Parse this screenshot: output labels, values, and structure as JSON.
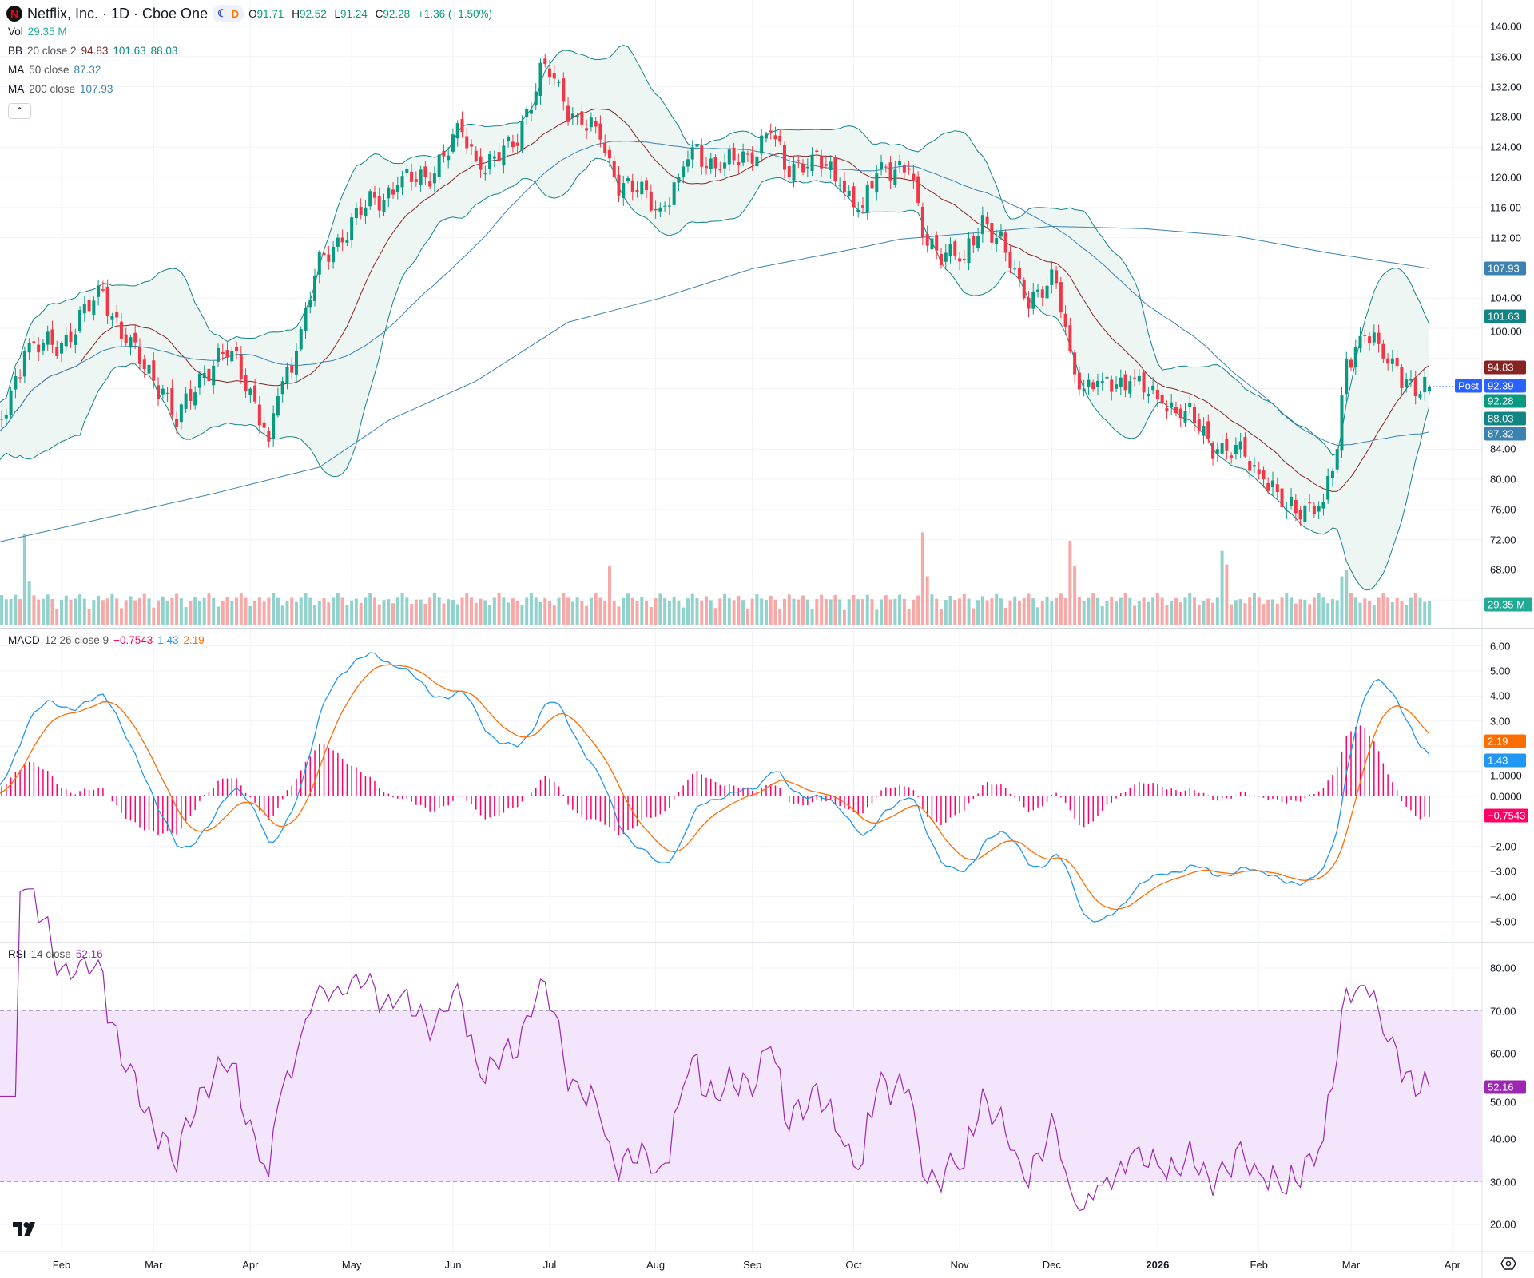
{
  "header": {
    "symbol_name": "Netflix, Inc. · 1D · Cboe One",
    "logo_letter": "N",
    "session_badge": {
      "moon_icon": "☾",
      "delay_label": "D"
    },
    "ohlc": {
      "o_label": "O",
      "o": "91.71",
      "h_label": "H",
      "h": "92.52",
      "l_label": "L",
      "l": "91.24",
      "c_label": "C",
      "c": "92.28",
      "change": "+1.36 (+1.50%)"
    }
  },
  "legend": {
    "vol": {
      "label": "Vol",
      "value": "29.35 M"
    },
    "bb": {
      "label": "BB",
      "params": "20 close 2",
      "basis": "94.83",
      "upper": "101.63",
      "lower": "88.03"
    },
    "ma50": {
      "label": "MA",
      "params": "50 close",
      "value": "87.32"
    },
    "ma200": {
      "label": "MA",
      "params": "200 close",
      "value": "107.93"
    },
    "collapse_icon": "⌃",
    "macd": {
      "label": "MACD",
      "params": "12 26 close 9",
      "hist": "−0.7543",
      "macd": "1.43",
      "signal": "2.19"
    },
    "rsi": {
      "label": "RSI",
      "params": "14 close",
      "value": "52.16"
    }
  },
  "price_axis": {
    "ticks": [
      "140.00",
      "136.00",
      "132.00",
      "128.00",
      "124.00",
      "120.00",
      "116.00",
      "112.00",
      "104.00",
      "100.00",
      "84.00",
      "80.00",
      "76.00",
      "72.00",
      "68.00"
    ],
    "badges": [
      {
        "value": 107.93,
        "text": "107.93",
        "color": "#3b82b0"
      },
      {
        "value": 101.63,
        "text": "101.63",
        "color": "#138484"
      },
      {
        "value": 94.83,
        "text": "94.83",
        "color": "#872323"
      },
      {
        "value": 92.39,
        "text": "92.39",
        "color": "#2962ff",
        "tag": "Post"
      },
      {
        "value": 92.28,
        "text": "92.28",
        "color": "#089981"
      },
      {
        "value": 88.03,
        "text": "88.03",
        "color": "#138484"
      },
      {
        "value": 87.32,
        "text": "87.32",
        "color": "#3b82b0"
      }
    ],
    "volume_badge": {
      "text": "29.35 M",
      "color": "#22ab94"
    }
  },
  "macd_axis": {
    "ticks": [
      "6.00",
      "5.00",
      "4.00",
      "3.00",
      "1.0000",
      "0.0000",
      "−2.00",
      "−3.00",
      "−4.00",
      "−5.00"
    ],
    "badges": [
      {
        "value": 2.19,
        "text": "2.19",
        "color": "#ff6d00"
      },
      {
        "value": 1.43,
        "text": "1.43",
        "color": "#2196f3"
      },
      {
        "value": -0.7543,
        "text": "−0.7543",
        "color": "#ff0066"
      }
    ]
  },
  "rsi_axis": {
    "ticks": [
      "80.00",
      "70.00",
      "60.00",
      "50.00",
      "40.00",
      "30.00",
      "20.00"
    ],
    "badge": {
      "value": 52.16,
      "text": "52.16",
      "color": "#9c27b0"
    }
  },
  "time_axis": [
    "Feb",
    "Mar",
    "Apr",
    "May",
    "Jun",
    "Jul",
    "Aug",
    "Sep",
    "Oct",
    "Nov",
    "Dec",
    "2026",
    "Feb",
    "Mar",
    "Apr"
  ],
  "colors": {
    "up": "#089981",
    "down": "#f23645",
    "vol_up": "#92d2cc",
    "vol_down": "#f7a9a7",
    "bb_band": "#138484",
    "bb_basis": "#872323",
    "bb_fill": "#eef6f4",
    "ma50": "#3b82b0",
    "ma200": "#3b82b0",
    "macd": "#2196f3",
    "signal": "#ff6d00",
    "hist": "#ff0066",
    "rsi": "#9c27b0",
    "rsi_band": "#f3e5fc"
  },
  "chart_data": {
    "type": "candlestick",
    "symbol": "Netflix, Inc.",
    "interval": "1D",
    "y_range": [
      64,
      140
    ],
    "grid": true,
    "last_bar": {
      "open": 91.71,
      "high": 92.52,
      "low": 91.24,
      "close": 92.28,
      "volume_m": 29.35
    },
    "close_keypoints": [
      [
        "2025-01-13",
        84
      ],
      [
        "2025-01-22",
        97
      ],
      [
        "2025-02-03",
        98
      ],
      [
        "2025-02-14",
        105
      ],
      [
        "2025-02-21",
        98
      ],
      [
        "2025-03-05",
        92
      ],
      [
        "2025-03-10",
        87
      ],
      [
        "2025-03-17",
        94
      ],
      [
        "2025-03-26",
        97
      ],
      [
        "2025-04-01",
        92
      ],
      [
        "2025-04-07",
        85
      ],
      [
        "2025-04-09",
        91
      ],
      [
        "2025-04-15",
        97
      ],
      [
        "2025-04-21",
        107
      ],
      [
        "2025-04-28",
        112
      ],
      [
        "2025-05-06",
        116
      ],
      [
        "2025-05-15",
        119
      ],
      [
        "2025-05-23",
        120
      ],
      [
        "2025-06-04",
        126
      ],
      [
        "2025-06-10",
        121
      ],
      [
        "2025-06-19",
        124
      ],
      [
        "2025-06-24",
        129
      ],
      [
        "2025-06-30",
        135
      ],
      [
        "2025-07-04",
        130
      ],
      [
        "2025-07-10",
        127
      ],
      [
        "2025-07-16",
        125
      ],
      [
        "2025-07-21",
        120
      ],
      [
        "2025-07-28",
        118
      ],
      [
        "2025-08-04",
        116
      ],
      [
        "2025-08-08",
        120
      ],
      [
        "2025-08-13",
        124
      ],
      [
        "2025-08-21",
        121
      ],
      [
        "2025-08-29",
        123
      ],
      [
        "2025-09-05",
        126
      ],
      [
        "2025-09-10",
        121
      ],
      [
        "2025-09-18",
        123
      ],
      [
        "2025-09-26",
        119
      ],
      [
        "2025-10-03",
        116
      ],
      [
        "2025-10-09",
        122
      ],
      [
        "2025-10-17",
        121
      ],
      [
        "2025-10-22",
        112
      ],
      [
        "2025-10-29",
        110
      ],
      [
        "2025-11-04",
        109
      ],
      [
        "2025-11-10",
        115
      ],
      [
        "2025-11-17",
        110
      ],
      [
        "2025-11-21",
        104
      ],
      [
        "2025-12-02",
        106
      ],
      [
        "2025-12-05",
        97
      ],
      [
        "2025-12-10",
        92
      ],
      [
        "2025-12-16",
        93
      ],
      [
        "2025-12-24",
        93
      ],
      [
        "2026-01-02",
        90
      ],
      [
        "2026-01-09",
        89
      ],
      [
        "2026-01-20",
        84
      ],
      [
        "2026-01-28",
        83
      ],
      [
        "2026-02-03",
        80
      ],
      [
        "2026-02-10",
        76
      ],
      [
        "2026-02-20",
        77
      ],
      [
        "2026-02-25",
        84
      ],
      [
        "2026-02-27",
        96
      ],
      [
        "2026-03-05",
        99
      ],
      [
        "2026-03-11",
        96
      ],
      [
        "2026-03-16",
        95
      ],
      [
        "2026-03-20",
        91
      ],
      [
        "2026-03-25",
        92.28
      ]
    ],
    "ma200_keypoints": [
      [
        "2025-01-13",
        71.5
      ],
      [
        "2025-03-20",
        78.1
      ],
      [
        "2025-04-22",
        81.6
      ],
      [
        "2025-05-13",
        87.8
      ],
      [
        "2025-06-09",
        93
      ],
      [
        "2025-07-07",
        100.8
      ],
      [
        "2025-08-04",
        104
      ],
      [
        "2025-09-01",
        107.9
      ],
      [
        "2025-10-01",
        110.5
      ],
      [
        "2025-10-15",
        111.8
      ],
      [
        "2025-12-01",
        113.5
      ],
      [
        "2025-12-29",
        113.2
      ],
      [
        "2026-01-26",
        112.2
      ],
      [
        "2026-02-23",
        110
      ],
      [
        "2026-03-25",
        107.93
      ]
    ],
    "volume_spikes_m": [
      [
        "2025-01-22",
        108
      ],
      [
        "2025-01-23",
        52
      ],
      [
        "2025-07-18",
        70
      ],
      [
        "2025-10-22",
        110
      ],
      [
        "2025-10-23",
        58
      ],
      [
        "2025-12-05",
        100
      ],
      [
        "2025-12-08",
        70
      ],
      [
        "2026-01-21",
        88
      ],
      [
        "2026-01-22",
        72
      ],
      [
        "2026-02-26",
        58
      ],
      [
        "2026-02-27",
        66
      ]
    ],
    "macd": {
      "fast": 12,
      "slow": 26,
      "signal": 9,
      "y_range": [
        -5.5,
        6.5
      ],
      "last": {
        "macd": 1.43,
        "signal": 2.19,
        "hist": -0.7543
      }
    },
    "rsi": {
      "length": 14,
      "y_range": [
        15,
        85
      ],
      "bands": [
        30,
        70
      ],
      "last": 52.16
    },
    "bollinger": {
      "length": 20,
      "mult": 2,
      "last": {
        "basis": 94.83,
        "upper": 101.63,
        "lower": 88.03
      }
    },
    "ma50_last": 87.32,
    "ma200_last": 107.93
  }
}
